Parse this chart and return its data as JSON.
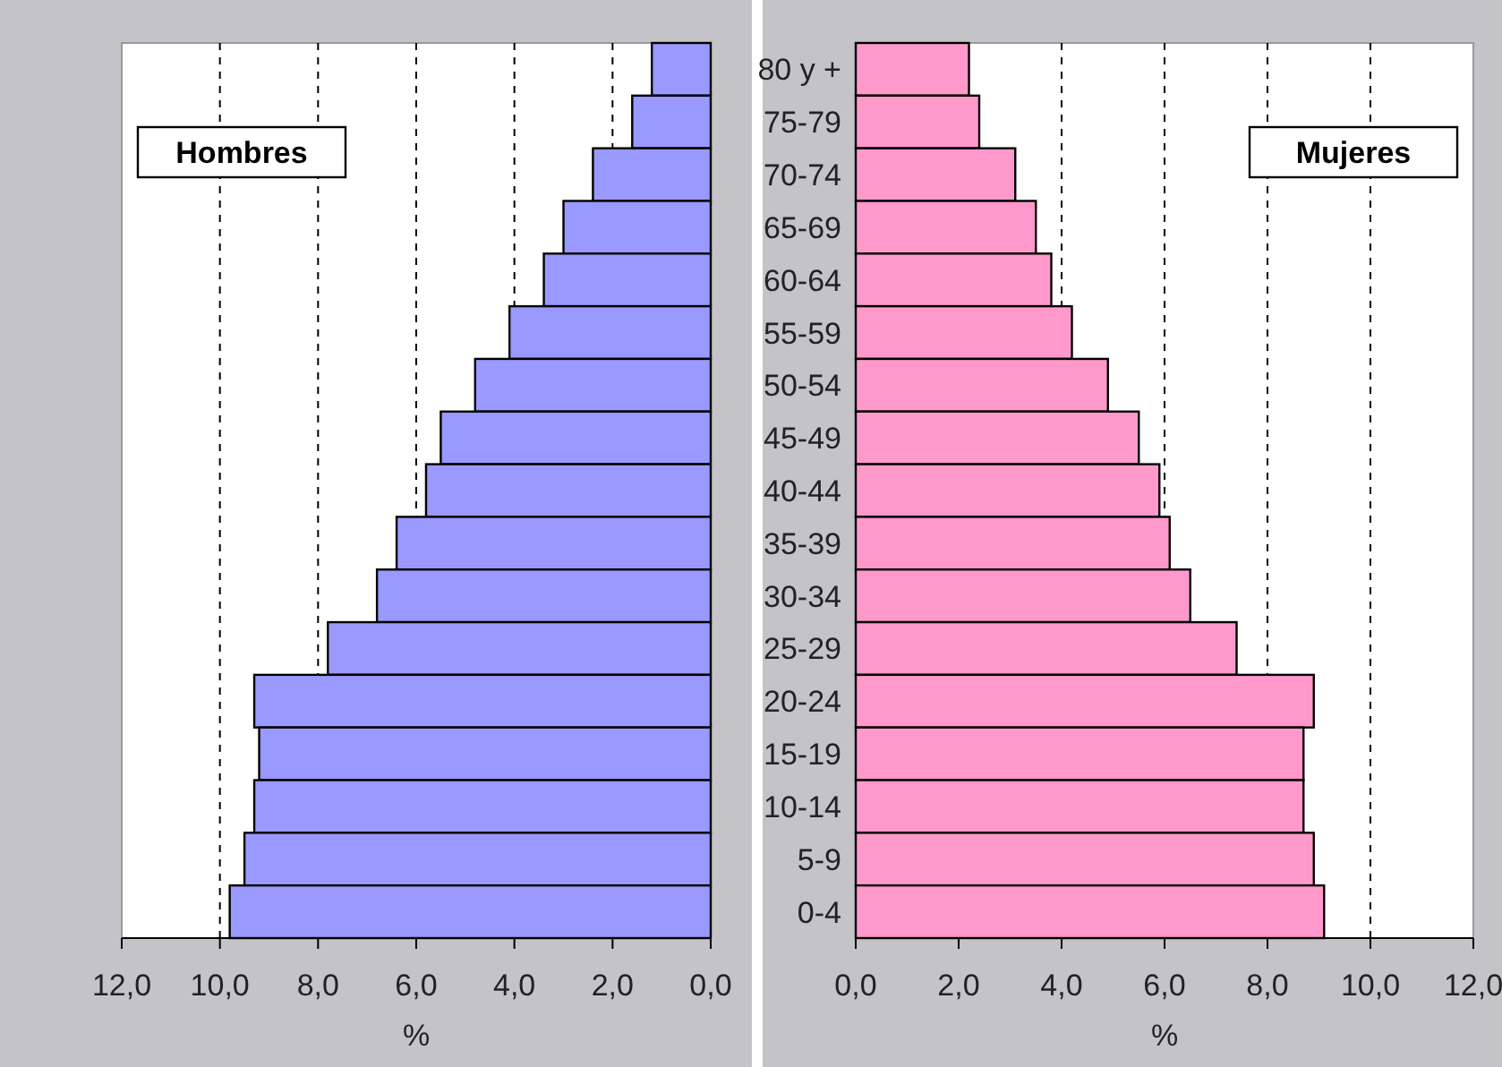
{
  "chart_data": [
    {
      "type": "bar",
      "orientation": "horizontal",
      "xlabel": "%",
      "categories": [
        "80 y +",
        "75-79",
        "70-74",
        "65-69",
        "60-64",
        "55-59",
        "50-54",
        "45-49",
        "40-44",
        "35-39",
        "30-34",
        "25-29",
        "20-24",
        "15-19",
        "10-14",
        "5-9",
        "0-4"
      ],
      "series": [
        {
          "name": "Hombres",
          "color": "#9999ff",
          "values": [
            1.2,
            1.6,
            2.4,
            3.0,
            3.4,
            4.1,
            4.8,
            5.5,
            5.8,
            6.4,
            6.8,
            7.8,
            9.3,
            9.2,
            9.3,
            9.5,
            9.8
          ]
        }
      ],
      "xlim": [
        12,
        0
      ],
      "xticks": [
        {
          "value": 12,
          "label": "12,0"
        },
        {
          "value": 10,
          "label": "10,0"
        },
        {
          "value": 8,
          "label": "8,0"
        },
        {
          "value": 6,
          "label": "6,0"
        },
        {
          "value": 4,
          "label": "4,0"
        },
        {
          "value": 2,
          "label": "2,0"
        },
        {
          "value": 0,
          "label": "0,0"
        }
      ],
      "grid": "x",
      "legend": "top left",
      "tick_labels": "x"
    },
    {
      "type": "bar",
      "orientation": "horizontal",
      "xlabel": "%",
      "categories": [
        "80 y +",
        "75-79",
        "70-74",
        "65-69",
        "60-64",
        "55-59",
        "50-54",
        "45-49",
        "40-44",
        "35-39",
        "30-34",
        "25-29",
        "20-24",
        "15-19",
        "10-14",
        "5-9",
        "0-4"
      ],
      "series": [
        {
          "name": "Mujeres",
          "color": "#ff99cc",
          "values": [
            2.2,
            2.4,
            3.1,
            3.5,
            3.8,
            4.2,
            4.9,
            5.5,
            5.9,
            6.1,
            6.5,
            7.4,
            8.9,
            8.7,
            8.7,
            8.9,
            9.1
          ]
        }
      ],
      "xlim": [
        0,
        12
      ],
      "xticks": [
        {
          "value": 0,
          "label": "0,0"
        },
        {
          "value": 2,
          "label": "2,0"
        },
        {
          "value": 4,
          "label": "4,0"
        },
        {
          "value": 6,
          "label": "6,0"
        },
        {
          "value": 8,
          "label": "8,0"
        },
        {
          "value": 10,
          "label": "10,0"
        },
        {
          "value": 12,
          "label": "12,0"
        }
      ],
      "grid": "x",
      "legend": "top right"
    }
  ]
}
